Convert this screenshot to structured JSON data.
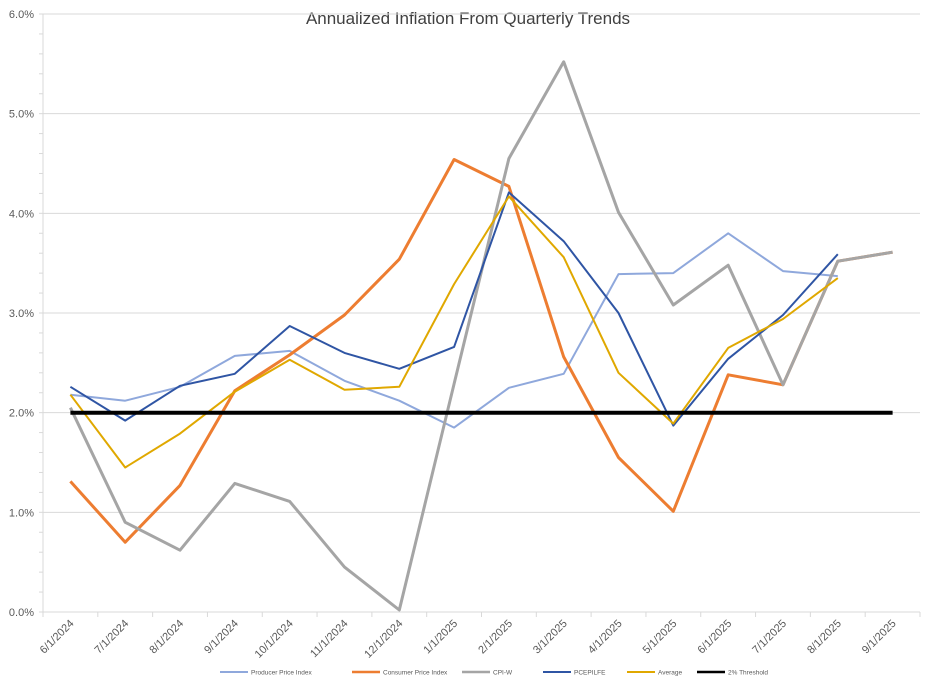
{
  "chart_data": {
    "type": "line",
    "title": "Annualized Inflation From Quarterly Trends",
    "xlabel": "",
    "ylabel": "",
    "ylim": [
      0,
      6
    ],
    "y_ticks": [
      "0.0%",
      "1.0%",
      "2.0%",
      "3.0%",
      "4.0%",
      "5.0%",
      "6.0%"
    ],
    "grid": true,
    "legend_position": "bottom",
    "categories": [
      "6/1/2024",
      "7/1/2024",
      "8/1/2024",
      "9/1/2024",
      "10/1/2024",
      "11/1/2024",
      "12/1/2024",
      "1/1/2025",
      "2/1/2025",
      "3/1/2025",
      "4/1/2025",
      "5/1/2025",
      "6/1/2025",
      "7/1/2025",
      "8/1/2025",
      "9/1/2025"
    ],
    "series": [
      {
        "name": "Producer Price Index",
        "color": "#8FA8DC",
        "width": 2,
        "values": [
          2.18,
          2.12,
          2.26,
          2.57,
          2.62,
          2.32,
          2.12,
          1.85,
          2.25,
          2.39,
          3.39,
          3.4,
          3.8,
          3.42,
          3.37,
          null
        ]
      },
      {
        "name": "Consumer Price Index",
        "color": "#ED7D31",
        "width": 3,
        "values": [
          1.31,
          0.7,
          1.27,
          2.22,
          2.58,
          2.98,
          3.54,
          4.54,
          4.27,
          2.56,
          1.55,
          1.01,
          2.38,
          2.28,
          3.52,
          3.61
        ]
      },
      {
        "name": "CPI-W",
        "color": "#A5A5A5",
        "width": 3,
        "values": [
          2.05,
          0.9,
          0.62,
          1.29,
          1.11,
          0.45,
          0.02,
          2.29,
          4.55,
          5.52,
          4.01,
          3.08,
          3.48,
          2.28,
          3.52,
          3.61
        ]
      },
      {
        "name": "PCEPILFE",
        "color": "#2F55A4",
        "width": 2,
        "values": [
          2.26,
          1.92,
          2.27,
          2.39,
          2.87,
          2.6,
          2.44,
          2.66,
          4.21,
          3.72,
          3.0,
          1.87,
          2.54,
          2.98,
          3.59,
          null
        ]
      },
      {
        "name": "Average",
        "color": "#E0A800",
        "width": 2,
        "values": [
          2.18,
          1.45,
          1.79,
          2.21,
          2.53,
          2.23,
          2.26,
          3.29,
          4.17,
          3.56,
          2.4,
          1.89,
          2.65,
          2.94,
          3.35,
          null
        ]
      },
      {
        "name": "2% Threshold",
        "color": "#000000",
        "width": 4,
        "values": [
          2,
          2,
          2,
          2,
          2,
          2,
          2,
          2,
          2,
          2,
          2,
          2,
          2,
          2,
          2,
          2
        ]
      }
    ]
  }
}
